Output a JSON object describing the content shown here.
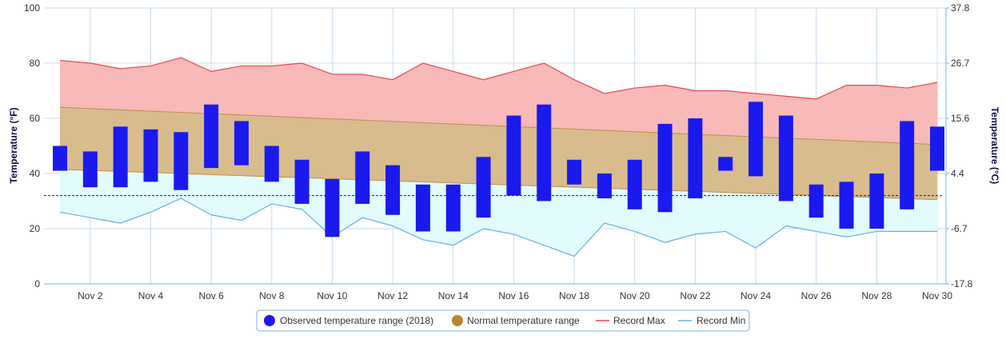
{
  "chart_data": {
    "type": "bar",
    "title": "",
    "x_labels": [
      "Nov 2",
      "Nov 4",
      "Nov 6",
      "Nov 8",
      "Nov 10",
      "Nov 12",
      "Nov 14",
      "Nov 16",
      "Nov 18",
      "Nov 20",
      "Nov 22",
      "Nov 24",
      "Nov 26",
      "Nov 28",
      "Nov 30"
    ],
    "days": [
      1,
      2,
      3,
      4,
      5,
      6,
      7,
      8,
      9,
      10,
      11,
      12,
      13,
      14,
      15,
      16,
      17,
      18,
      19,
      20,
      21,
      22,
      23,
      24,
      25,
      26,
      27,
      28,
      29,
      30
    ],
    "y_left": {
      "label": "Temperature (°F)",
      "min": 0,
      "max": 100,
      "ticks": [
        0,
        20,
        40,
        60,
        80,
        100
      ]
    },
    "y_right": {
      "label": "Temperature (°C)",
      "ticks": [
        "-17.8",
        "-6.7",
        "4.4",
        "15.6",
        "26.7",
        "37.8"
      ]
    },
    "freezing_line_f": 32,
    "observed": {
      "name": "Observed temperature range (2018)",
      "color": "#1a1aee",
      "low": [
        41,
        35,
        35,
        37,
        34,
        42,
        43,
        37,
        29,
        17,
        29,
        25,
        19,
        19,
        24,
        32,
        30,
        36,
        31,
        27,
        26,
        31,
        41,
        39,
        30,
        24,
        20,
        20,
        27,
        41
      ],
      "high": [
        50,
        48,
        57,
        56,
        55,
        65,
        59,
        50,
        45,
        38,
        48,
        43,
        36,
        36,
        46,
        61,
        65,
        45,
        40,
        45,
        58,
        60,
        46,
        66,
        61,
        36,
        37,
        40,
        59,
        57
      ]
    },
    "normal": {
      "name": "Normal temperature range",
      "color": "#b8862f",
      "high_start": 64,
      "high_end": 50.5,
      "low_start": 41.5,
      "low_end": 30.5
    },
    "record_max": {
      "name": "Record Max",
      "color": "#e8474b",
      "values": [
        81,
        80,
        78,
        79,
        82,
        77,
        79,
        79,
        80,
        76,
        76,
        74,
        80,
        77,
        74,
        77,
        80,
        74,
        69,
        71,
        72,
        70,
        70,
        69,
        68,
        67,
        72,
        72,
        71,
        73
      ]
    },
    "record_min": {
      "name": "Record Min",
      "color": "#6aaee8",
      "values": [
        26,
        24,
        22,
        26,
        31,
        25,
        23,
        29,
        27,
        17,
        24,
        21,
        16,
        14,
        20,
        18,
        14,
        10,
        22,
        19,
        15,
        18,
        19,
        13,
        21,
        19,
        17,
        19,
        19,
        19
      ]
    }
  }
}
